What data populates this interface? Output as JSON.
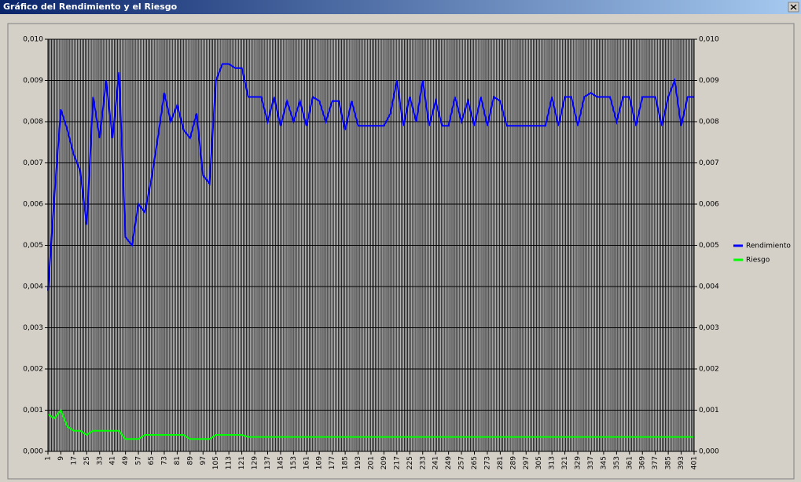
{
  "chart_data": {
    "type": "line",
    "title": "Gráfico del Rendimiento y el Riesgo",
    "x": [
      1,
      5,
      9,
      13,
      17,
      21,
      25,
      29,
      33,
      37,
      41,
      45,
      49,
      53,
      57,
      61,
      65,
      69,
      73,
      77,
      81,
      85,
      89,
      93,
      97,
      101,
      105,
      109,
      113,
      117,
      121,
      125,
      129,
      133,
      137,
      141,
      145,
      149,
      153,
      157,
      161,
      165,
      169,
      173,
      177,
      181,
      185,
      189,
      193,
      197,
      201,
      205,
      209,
      213,
      217,
      221,
      225,
      229,
      233,
      237,
      241,
      245,
      249,
      253,
      257,
      261,
      265,
      269,
      273,
      277,
      281,
      285,
      289,
      293,
      297,
      301,
      305,
      309,
      313,
      317,
      321,
      325,
      329,
      333,
      337,
      341,
      345,
      349,
      353,
      357,
      361,
      365,
      369,
      373,
      377,
      381,
      385,
      389,
      393,
      397,
      401
    ],
    "series": [
      {
        "name": "Rendimiento",
        "color": "#0000ff",
        "values": [
          0.0039,
          0.0062,
          0.0083,
          0.0078,
          0.0072,
          0.0068,
          0.0055,
          0.0086,
          0.0076,
          0.009,
          0.0076,
          0.0092,
          0.0052,
          0.005,
          0.006,
          0.0058,
          0.0066,
          0.0076,
          0.0087,
          0.008,
          0.0084,
          0.0078,
          0.0076,
          0.0082,
          0.0067,
          0.0065,
          0.009,
          0.0094,
          0.0094,
          0.0093,
          0.0093,
          0.0086,
          0.0086,
          0.0086,
          0.008,
          0.0086,
          0.0079,
          0.0085,
          0.008,
          0.0085,
          0.0079,
          0.0086,
          0.0085,
          0.008,
          0.0085,
          0.0085,
          0.0078,
          0.0085,
          0.0079,
          0.0079,
          0.0079,
          0.0079,
          0.0079,
          0.0082,
          0.009,
          0.0079,
          0.0086,
          0.008,
          0.009,
          0.0079,
          0.0085,
          0.0079,
          0.0079,
          0.0086,
          0.008,
          0.0085,
          0.0079,
          0.0086,
          0.0079,
          0.0086,
          0.0085,
          0.0079,
          0.0079,
          0.0079,
          0.0079,
          0.0079,
          0.0079,
          0.0079,
          0.0086,
          0.0079,
          0.0086,
          0.0086,
          0.0079,
          0.0086,
          0.0087,
          0.0086,
          0.0086,
          0.0086,
          0.008,
          0.0086,
          0.0086,
          0.0079,
          0.0086,
          0.0086,
          0.0086,
          0.0079,
          0.0086,
          0.009,
          0.0079,
          0.0086,
          0.0086
        ]
      },
      {
        "name": "Riesgo",
        "color": "#00ff00",
        "values": [
          0.0009,
          0.0008,
          0.001,
          0.0006,
          0.0005,
          0.0005,
          0.0004,
          0.0005,
          0.0005,
          0.0005,
          0.0005,
          0.0005,
          0.0003,
          0.0003,
          0.0003,
          0.0004,
          0.0004,
          0.0004,
          0.0004,
          0.0004,
          0.0004,
          0.0004,
          0.0003,
          0.0003,
          0.0003,
          0.0003,
          0.0004,
          0.0004,
          0.0004,
          0.0004,
          0.0004,
          0.00035,
          0.00035,
          0.00035,
          0.00035,
          0.00035,
          0.00035,
          0.00035,
          0.00035,
          0.00035,
          0.00035,
          0.00035,
          0.00035,
          0.00035,
          0.00035,
          0.00035,
          0.00035,
          0.00035,
          0.00035,
          0.00035,
          0.00035,
          0.00035,
          0.00035,
          0.00035,
          0.00035,
          0.00035,
          0.00035,
          0.00035,
          0.00035,
          0.00035,
          0.00035,
          0.00035,
          0.00035,
          0.00035,
          0.00035,
          0.00035,
          0.00035,
          0.00035,
          0.00035,
          0.00035,
          0.00035,
          0.00035,
          0.00035,
          0.00035,
          0.00035,
          0.00035,
          0.00035,
          0.00035,
          0.00035,
          0.00035,
          0.00035,
          0.00035,
          0.00035,
          0.00035,
          0.00035,
          0.00035,
          0.00035,
          0.00035,
          0.00035,
          0.00035,
          0.00035,
          0.00035,
          0.00035,
          0.00035,
          0.00035,
          0.00035,
          0.00035,
          0.00035,
          0.00035,
          0.00035,
          0.00035
        ]
      }
    ],
    "xlim": [
      1,
      401
    ],
    "xticks": [
      1,
      9,
      17,
      25,
      33,
      41,
      49,
      57,
      65,
      73,
      81,
      89,
      97,
      105,
      113,
      121,
      129,
      137,
      145,
      153,
      161,
      169,
      177,
      185,
      193,
      201,
      209,
      217,
      225,
      233,
      241,
      249,
      257,
      265,
      273,
      281,
      289,
      297,
      305,
      313,
      321,
      329,
      337,
      345,
      353,
      361,
      369,
      377,
      385,
      393,
      401
    ],
    "ylim": [
      0,
      0.01
    ],
    "yticks": [
      {
        "value": 0,
        "label": "0,000"
      },
      {
        "value": 0.001,
        "label": "0,001"
      },
      {
        "value": 0.002,
        "label": "0,002"
      },
      {
        "value": 0.003,
        "label": "0,003"
      },
      {
        "value": 0.004,
        "label": "0,004"
      },
      {
        "value": 0.005,
        "label": "0,005"
      },
      {
        "value": 0.006,
        "label": "0,006"
      },
      {
        "value": 0.007,
        "label": "0,007"
      },
      {
        "value": 0.008,
        "label": "0,008"
      },
      {
        "value": 0.009,
        "label": "0,009"
      },
      {
        "value": 0.01,
        "label": "0,010"
      }
    ],
    "grid": true
  }
}
